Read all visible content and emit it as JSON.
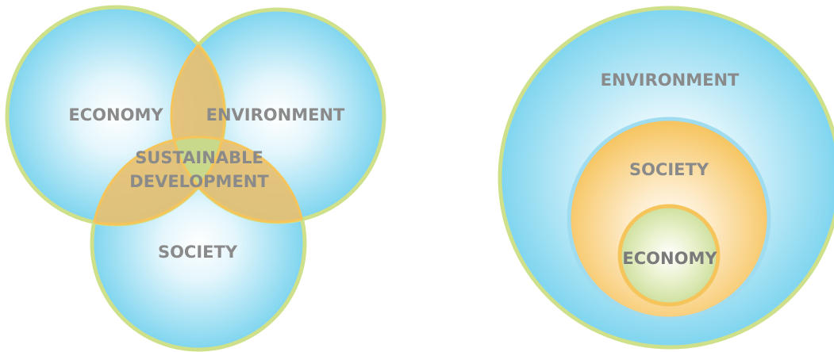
{
  "venn_model": {
    "circles": {
      "economy": "ECONOMY",
      "environment": "ENVIRONMENT",
      "society": "SOCIETY"
    },
    "intersection_line1": "SUSTAINABLE",
    "intersection_line2": "DEVELOPMENT"
  },
  "nested_model": {
    "outer": "ENVIRONMENT",
    "middle": "SOCIETY",
    "inner": "ECONOMY"
  },
  "colors": {
    "blue_fill_edge": "#7fd5ef",
    "blue_fill_center": "#ffffff",
    "green_border": "#cfe08a",
    "orange_overlap": "#e8bf6e",
    "orange_border": "#f5c45a",
    "orange_fill_edge": "#f6c35c",
    "green_fill_edge": "#cfe09a",
    "label_gray": "#8a8a8a",
    "label_gray_dark": "#7a7a7a"
  }
}
